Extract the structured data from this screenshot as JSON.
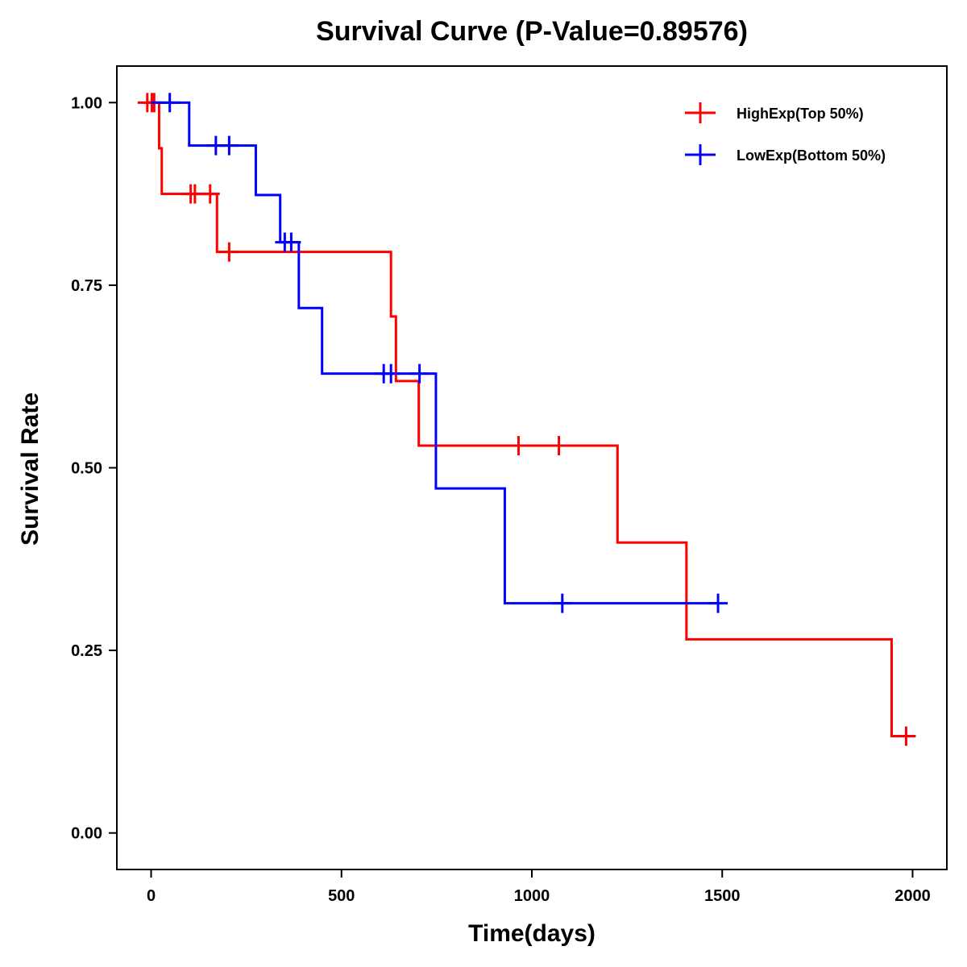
{
  "chart_data": {
    "type": "line",
    "subtype": "kaplan-meier-step",
    "title": "Survival Curve (P-Value=0.89576)",
    "xlabel": "Time(days)",
    "ylabel": "Survival Rate",
    "xlim": [
      -90,
      2090
    ],
    "ylim": [
      -0.05,
      1.05
    ],
    "xticks": [
      0,
      500,
      1000,
      1500,
      2000
    ],
    "xtick_labels": [
      "0",
      "500",
      "1000",
      "1500",
      "2000"
    ],
    "yticks": [
      0.0,
      0.25,
      0.5,
      0.75,
      1.0
    ],
    "ytick_labels": [
      "0.00",
      "0.25",
      "0.50",
      "0.75",
      "1.00"
    ],
    "grid": false,
    "legend_position": "top-right",
    "series": [
      {
        "name": "HighExp(Top 50%)",
        "color": "#ff0000",
        "steps": [
          [
            0,
            1.0
          ],
          [
            21,
            0.9375
          ],
          [
            28,
            0.875
          ],
          [
            173,
            0.7955
          ],
          [
            630,
            0.7071
          ],
          [
            643,
            0.6187
          ],
          [
            703,
            0.5303
          ],
          [
            1225,
            0.3977
          ],
          [
            1406,
            0.2652
          ],
          [
            1945,
            0.1326
          ]
        ],
        "end_time": 1983,
        "censored": [
          [
            -10,
            1.0
          ],
          [
            2,
            1.0
          ],
          [
            8,
            1.0
          ],
          [
            104,
            0.875
          ],
          [
            115,
            0.875
          ],
          [
            155,
            0.875
          ],
          [
            205,
            0.7955
          ],
          [
            965,
            0.5303
          ],
          [
            1071,
            0.5303
          ],
          [
            1983,
            0.1326
          ]
        ]
      },
      {
        "name": "LowExp(Bottom 50%)",
        "color": "#0000ff",
        "steps": [
          [
            0,
            1.0
          ],
          [
            100,
            0.9412
          ],
          [
            275,
            0.8735
          ],
          [
            339,
            0.8088
          ],
          [
            388,
            0.7188
          ],
          [
            449,
            0.6289
          ],
          [
            748,
            0.4717
          ],
          [
            929,
            0.3145
          ]
        ],
        "end_time": 1489,
        "censored": [
          [
            49,
            1.0
          ],
          [
            170,
            0.9412
          ],
          [
            205,
            0.9412
          ],
          [
            351,
            0.8088
          ],
          [
            368,
            0.8088
          ],
          [
            611,
            0.6289
          ],
          [
            630,
            0.6289
          ],
          [
            705,
            0.6289
          ],
          [
            1080,
            0.3145
          ],
          [
            1489,
            0.3145
          ]
        ]
      }
    ]
  }
}
